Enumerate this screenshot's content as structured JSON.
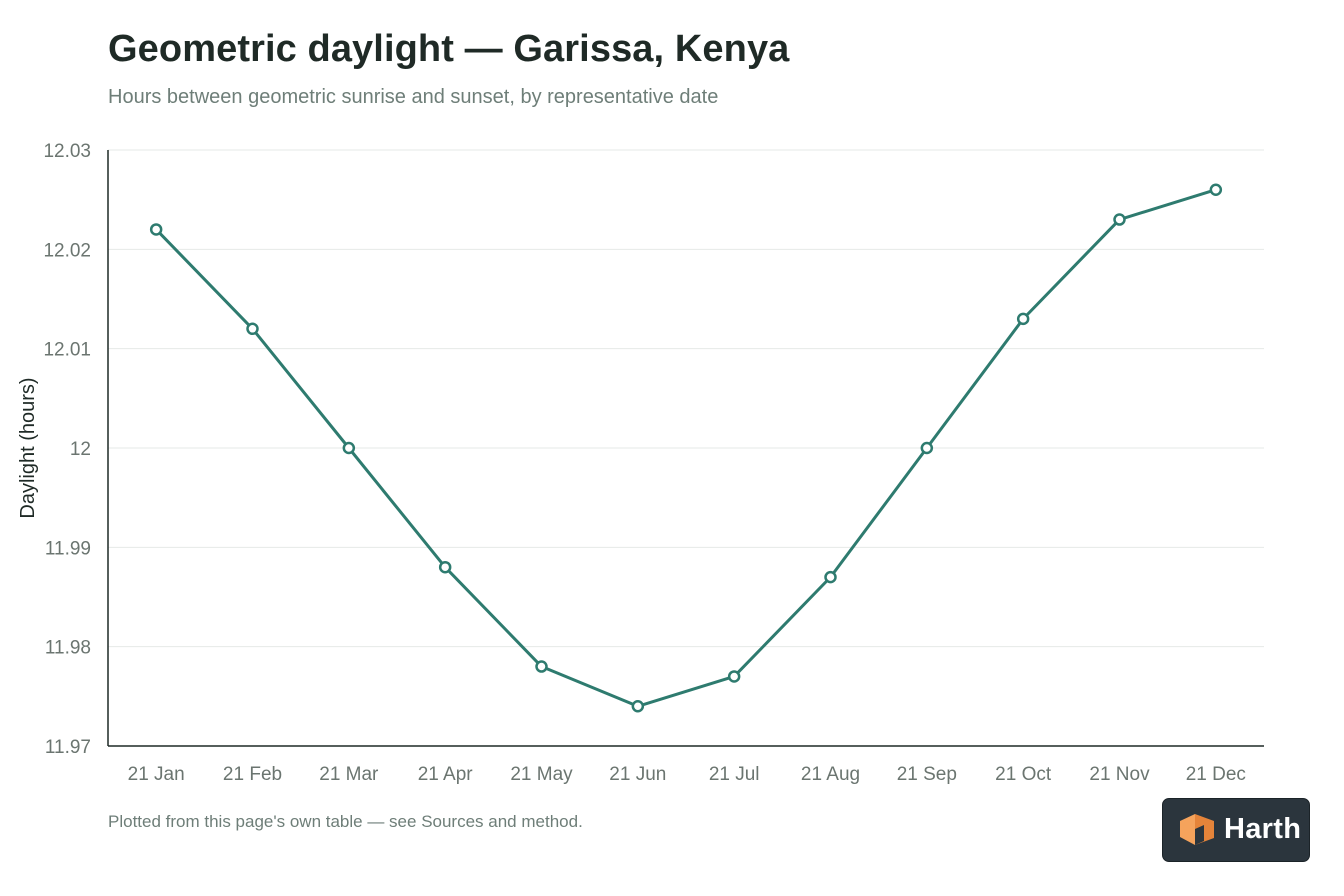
{
  "header": {
    "title": "Geometric daylight — Garissa, Kenya",
    "subtitle": "Hours between geometric sunrise and sunset, by representative date"
  },
  "footnote": "Plotted from this page's own table — see Sources and method.",
  "brand": {
    "name": "Harth",
    "logo_icon": "cube-logo-icon"
  },
  "colors": {
    "line": "#2e7b6f",
    "marker_fill": "#ffffff",
    "grid": "#e6e9e7",
    "axis": "#1f2a26",
    "logo_light": "#f5a35c",
    "logo_dark": "#e5843a"
  },
  "chart_data": {
    "type": "line",
    "title": "Geometric daylight — Garissa, Kenya",
    "subtitle": "Hours between geometric sunrise and sunset, by representative date",
    "xlabel": "",
    "ylabel": "Daylight (hours)",
    "categories": [
      "21 Jan",
      "21 Feb",
      "21 Mar",
      "21 Apr",
      "21 May",
      "21 Jun",
      "21 Jul",
      "21 Aug",
      "21 Sep",
      "21 Oct",
      "21 Nov",
      "21 Dec"
    ],
    "values": [
      12.022,
      12.012,
      12.0,
      11.988,
      11.978,
      11.974,
      11.977,
      11.987,
      12.0,
      12.013,
      12.023,
      12.026
    ],
    "ylim": [
      11.97,
      12.03
    ],
    "yticks": [
      11.97,
      11.98,
      11.99,
      12.0,
      12.01,
      12.02,
      12.03
    ],
    "ytick_labels": [
      "11.97",
      "11.98",
      "11.99",
      "12",
      "12.01",
      "12.02",
      "12.03"
    ],
    "grid": "horizontal",
    "legend": "none",
    "markers": "hollow circles"
  }
}
